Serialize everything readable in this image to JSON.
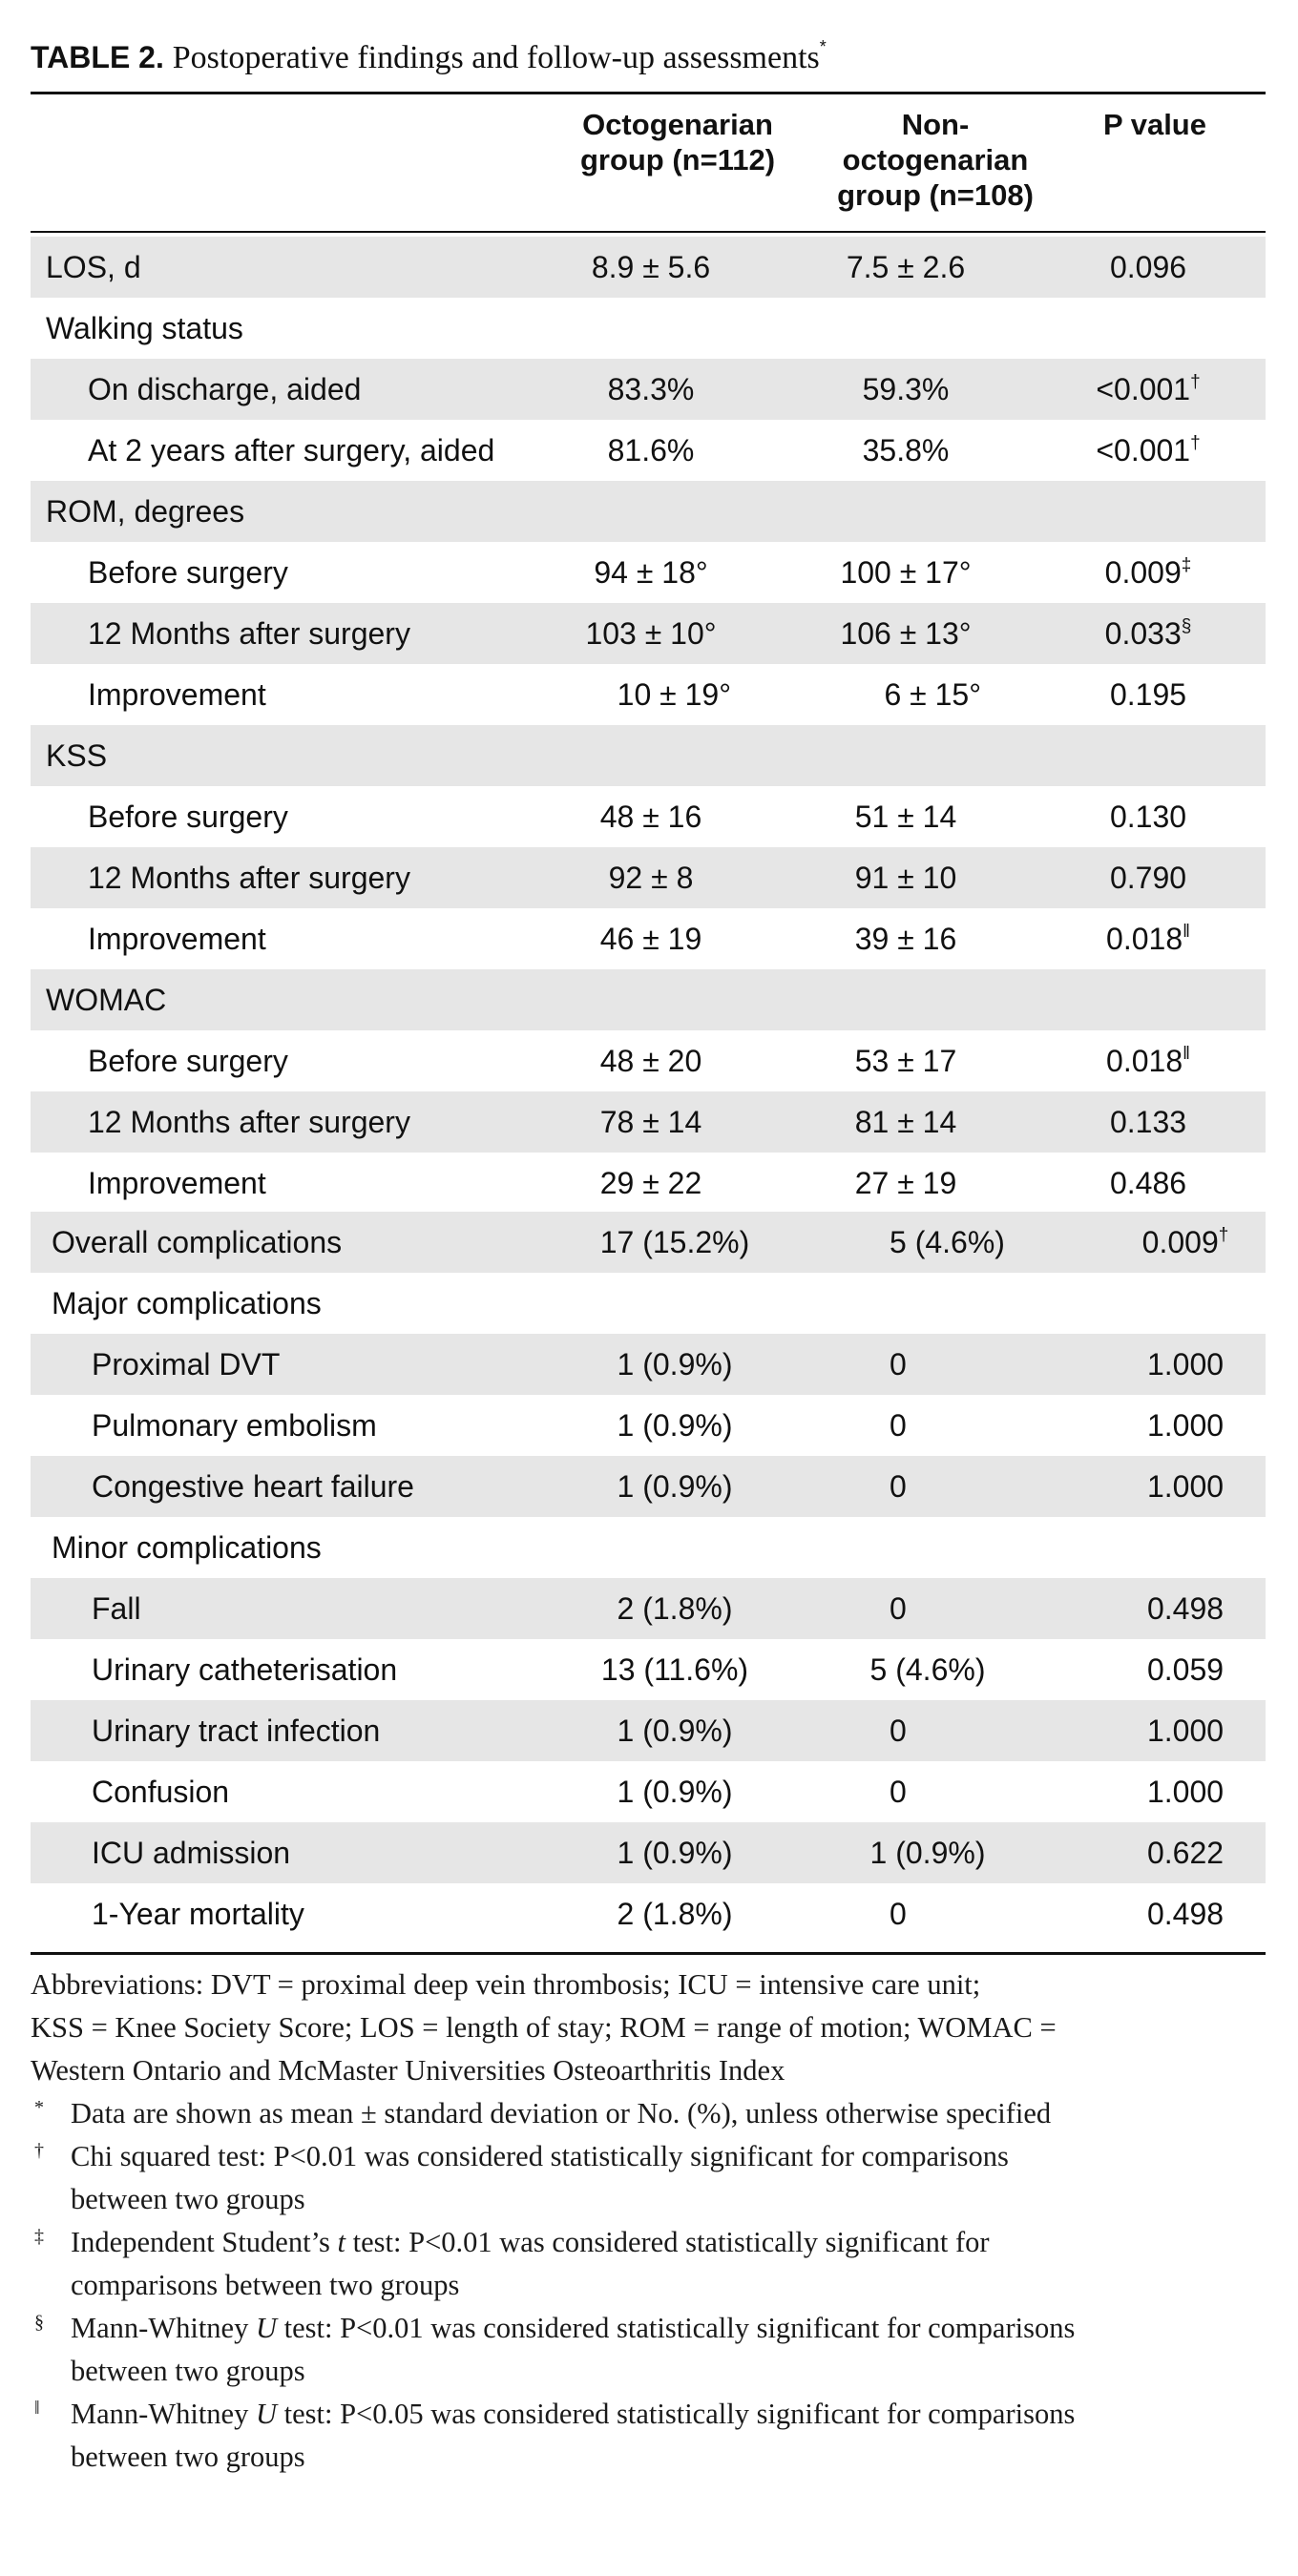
{
  "caption": {
    "label": "TABLE 2.",
    "title": "Postoperative findings and follow-up assessments",
    "marker": "*"
  },
  "header": {
    "col1": [
      "Octogenarian",
      "group (n=112)"
    ],
    "col2": [
      "Non-",
      "octogenarian",
      "group (n=108)"
    ],
    "col3": "P value"
  },
  "rows": [
    {
      "label": "LOS, d",
      "c1": "8.9 ± 5.6",
      "c2": "7.5 ± 2.6",
      "p": "0.096",
      "sup": ""
    },
    {
      "label": "Walking status",
      "c1": "",
      "c2": "",
      "p": "",
      "sup": ""
    },
    {
      "label": "On discharge, aided",
      "c1": "83.3%",
      "c2": "59.3%",
      "p": "<0.001",
      "sup": "†"
    },
    {
      "label": "At 2 years after surgery, aided",
      "c1": "81.6%",
      "c2": "35.8%",
      "p": "<0.001",
      "sup": "†"
    },
    {
      "label": "ROM, degrees",
      "c1": "",
      "c2": "",
      "p": "",
      "sup": ""
    },
    {
      "label": "Before surgery",
      "c1": "94 ± 18°",
      "c2": "100 ± 17°",
      "p": "0.009",
      "sup": "‡"
    },
    {
      "label": "12 Months after surgery",
      "c1": "103 ± 10°",
      "c2": "106 ± 13°",
      "p": "0.033",
      "sup": "§"
    },
    {
      "label": "Improvement",
      "c1": "10 ± 19°",
      "c2": "6 ± 15°",
      "p": "0.195",
      "sup": ""
    },
    {
      "label": "KSS",
      "c1": "",
      "c2": "",
      "p": "",
      "sup": ""
    },
    {
      "label": "Before surgery",
      "c1": "48 ± 16",
      "c2": "51 ± 14",
      "p": "0.130",
      "sup": ""
    },
    {
      "label": "12 Months after surgery",
      "c1": "92 ± 8",
      "c2": "91 ± 10",
      "p": "0.790",
      "sup": ""
    },
    {
      "label": "Improvement",
      "c1": "46 ± 19",
      "c2": "39 ± 16",
      "p": "0.018",
      "sup": "‖"
    },
    {
      "label": "WOMAC",
      "c1": "",
      "c2": "",
      "p": "",
      "sup": ""
    },
    {
      "label": "Before surgery",
      "c1": "48 ± 20",
      "c2": "53 ± 17",
      "p": "0.018",
      "sup": "‖"
    },
    {
      "label": "12 Months after surgery",
      "c1": "78 ± 14",
      "c2": "81 ± 14",
      "p": "0.133",
      "sup": ""
    },
    {
      "label": "Improvement",
      "c1": "29 ± 22",
      "c2": "27 ± 19",
      "p": "0.486",
      "sup": ""
    },
    {
      "label": "Overall complications",
      "c1": "17 (15.2%)",
      "c2": "5 (4.6%)",
      "p": "0.009",
      "sup": "†"
    },
    {
      "label": "Major complications",
      "c1": "",
      "c2": "",
      "p": "",
      "sup": ""
    },
    {
      "label": "Proximal DVT",
      "c1": "1 (0.9%)",
      "c2": "0",
      "p": "1.000",
      "sup": ""
    },
    {
      "label": "Pulmonary embolism",
      "c1": "1 (0.9%)",
      "c2": "0",
      "p": "1.000",
      "sup": ""
    },
    {
      "label": "Congestive heart failure",
      "c1": "1 (0.9%)",
      "c2": "0",
      "p": "1.000",
      "sup": ""
    },
    {
      "label": "Minor complications",
      "c1": "",
      "c2": "",
      "p": "",
      "sup": ""
    },
    {
      "label": "Fall",
      "c1": "2 (1.8%)",
      "c2": "0",
      "p": "0.498",
      "sup": ""
    },
    {
      "label": "Urinary catheterisation",
      "c1": "13 (11.6%)",
      "c2": "5 (4.6%)",
      "p": "0.059",
      "sup": ""
    },
    {
      "label": "Urinary tract infection",
      "c1": "1 (0.9%)",
      "c2": "0",
      "p": "1.000",
      "sup": ""
    },
    {
      "label": "Confusion",
      "c1": "1 (0.9%)",
      "c2": "0",
      "p": "1.000",
      "sup": ""
    },
    {
      "label": "ICU admission",
      "c1": "1 (0.9%)",
      "c2": "1 (0.9%)",
      "p": "0.622",
      "sup": ""
    },
    {
      "label": "1-Year mortality",
      "c1": "2 (1.8%)",
      "c2": "0",
      "p": "0.498",
      "sup": ""
    }
  ],
  "notes": {
    "abbreviations": [
      "Abbreviations: DVT = proximal deep vein thrombosis; ICU = intensive care unit;",
      "KSS = Knee Society Score; LOS = length of stay; ROM = range of motion; WOMAC =",
      "Western Ontario and McMaster Universities Osteoarthritis Index"
    ],
    "footnotes": [
      {
        "mark": "*",
        "lines": [
          "Data are shown as mean ± standard deviation or No. (%), unless otherwise specified"
        ]
      },
      {
        "mark": "†",
        "lines": [
          "Chi squared test: P<0.01 was considered statistically significant for comparisons",
          "between two groups"
        ]
      },
      {
        "mark": "‡",
        "pre": "Independent Student’s ",
        "ital": "t",
        "post": " test: P<0.01 was considered statistically significant for",
        "line2": "comparisons between two groups"
      },
      {
        "mark": "§",
        "pre": "Mann-Whitney ",
        "ital": "U",
        "post": " test: P<0.01 was considered statistically significant for comparisons",
        "line2": "between two groups"
      },
      {
        "mark": "‖",
        "pre": "Mann-Whitney ",
        "ital": "U",
        "post": " test: P<0.05 was considered statistically significant for comparisons",
        "line2": "between two groups"
      }
    ]
  }
}
